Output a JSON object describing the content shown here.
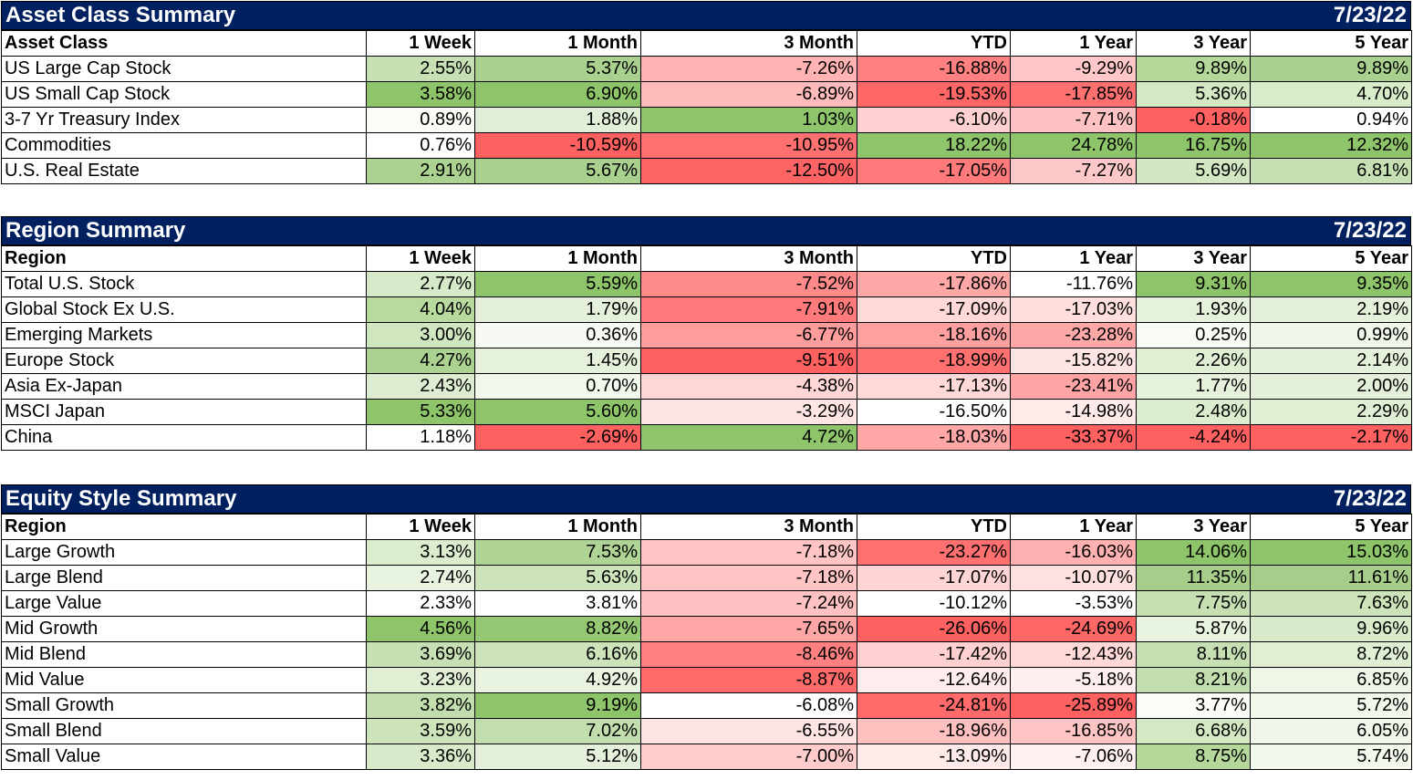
{
  "colors": {
    "header_bg": "#002060",
    "header_text": "#ffffff"
  },
  "columns": [
    "1 Week",
    "1 Month",
    "3 Month",
    "YTD",
    "1 Year",
    "3 Year",
    "5 Year"
  ],
  "sections": [
    {
      "title": "Asset Class Summary",
      "date": "7/23/22",
      "first_col": "Asset Class",
      "rows": [
        {
          "name": "US Large Cap Stock",
          "values": [
            "2.55%",
            "5.37%",
            "-7.26%",
            "-16.88%",
            "-9.29%",
            "9.89%",
            "9.89%"
          ],
          "fills": [
            "#c6e0b4",
            "#a9d08e",
            "#ffb3b3",
            "#ff8080",
            "#ffc7c7",
            "#b5d89a",
            "#a9d08e"
          ]
        },
        {
          "name": "US Small Cap Stock",
          "values": [
            "3.58%",
            "6.90%",
            "-6.89%",
            "-19.53%",
            "-17.85%",
            "5.36%",
            "4.70%"
          ],
          "fills": [
            "#8ec46a",
            "#8ec46a",
            "#ffbaba",
            "#ff6666",
            "#ff7070",
            "#d4e8c4",
            "#d9ecca"
          ]
        },
        {
          "name": "3-7 Yr Treasury Index",
          "values": [
            "0.89%",
            "1.88%",
            "1.03%",
            "-6.10%",
            "-7.71%",
            "-0.18%",
            "0.94%"
          ],
          "fills": [
            "#fafcf8",
            "#e2efd8",
            "#8ec46a",
            "#ffd0d0",
            "#ffc2c2",
            "#ff6060",
            "#ffffff"
          ]
        },
        {
          "name": "Commodities",
          "values": [
            "0.76%",
            "-10.59%",
            "-10.95%",
            "18.22%",
            "24.78%",
            "16.75%",
            "12.32%"
          ],
          "fills": [
            "#ffffff",
            "#ff6060",
            "#ff7070",
            "#8ec46a",
            "#8ec46a",
            "#8ec46a",
            "#8ec46a"
          ]
        },
        {
          "name": "U.S. Real Estate",
          "values": [
            "2.91%",
            "5.67%",
            "-12.50%",
            "-17.05%",
            "-7.27%",
            "5.69%",
            "6.81%"
          ],
          "fills": [
            "#acd292",
            "#a9d08e",
            "#ff6464",
            "#ff7a7a",
            "#ffc8c8",
            "#d2e7c2",
            "#c6e0b4"
          ]
        }
      ]
    },
    {
      "title": "Region Summary",
      "date": "7/23/22",
      "first_col": "Region",
      "rows": [
        {
          "name": "Total U.S. Stock",
          "values": [
            "2.77%",
            "5.59%",
            "-7.52%",
            "-17.86%",
            "-11.76%",
            "9.31%",
            "9.35%"
          ],
          "fills": [
            "#d6e9c8",
            "#8ec46a",
            "#ff8a8a",
            "#ffa8a8",
            "#ffffff",
            "#8ec46a",
            "#8ec46a"
          ]
        },
        {
          "name": "Global Stock Ex U.S.",
          "values": [
            "4.04%",
            "1.79%",
            "-7.91%",
            "-17.09%",
            "-17.03%",
            "1.93%",
            "2.19%"
          ],
          "fills": [
            "#b8da9e",
            "#e4f0da",
            "#ff7a7a",
            "#ffd8d8",
            "#ffdede",
            "#e6f1dc",
            "#e4f0da"
          ]
        },
        {
          "name": "Emerging Markets",
          "values": [
            "3.00%",
            "0.36%",
            "-6.77%",
            "-18.16%",
            "-23.28%",
            "0.25%",
            "0.99%"
          ],
          "fills": [
            "#d0e6bf",
            "#f6faf2",
            "#ff9c9c",
            "#ffa0a0",
            "#ffa8a8",
            "#f8fbf4",
            "#f0f7ea"
          ]
        },
        {
          "name": "Europe Stock",
          "values": [
            "4.27%",
            "1.45%",
            "-9.51%",
            "-18.99%",
            "-15.82%",
            "2.26%",
            "2.14%"
          ],
          "fills": [
            "#acd292",
            "#e6f1dc",
            "#ff6060",
            "#ff7070",
            "#ffe4e4",
            "#e0eed4",
            "#e4f0da"
          ]
        },
        {
          "name": "Asia Ex-Japan",
          "values": [
            "2.43%",
            "0.70%",
            "-4.38%",
            "-17.13%",
            "-23.41%",
            "1.77%",
            "2.00%"
          ],
          "fills": [
            "#deedd1",
            "#f2f8ec",
            "#ffd6d6",
            "#ffd8d8",
            "#ffa4a4",
            "#e6f1dc",
            "#e4f0da"
          ]
        },
        {
          "name": "MSCI Japan",
          "values": [
            "5.33%",
            "5.60%",
            "-3.29%",
            "-16.50%",
            "-14.98%",
            "2.48%",
            "2.29%"
          ],
          "fills": [
            "#8ec46a",
            "#8ec46a",
            "#ffe4e4",
            "#ffffff",
            "#ffeaea",
            "#dcecce",
            "#e0eed4"
          ]
        },
        {
          "name": "China",
          "values": [
            "1.18%",
            "-2.69%",
            "4.72%",
            "-18.03%",
            "-33.37%",
            "-4.24%",
            "-2.17%"
          ],
          "fills": [
            "#ffffff",
            "#ff6060",
            "#8ec46a",
            "#ffa6a6",
            "#ff6060",
            "#ff6060",
            "#ff6060"
          ]
        }
      ]
    },
    {
      "title": "Equity Style Summary",
      "date": "7/23/22",
      "first_col": "Region",
      "rows": [
        {
          "name": "Large Growth",
          "values": [
            "3.13%",
            "7.53%",
            "-7.18%",
            "-23.27%",
            "-16.03%",
            "14.06%",
            "15.03%"
          ],
          "fills": [
            "#dcecce",
            "#b0d496",
            "#ffc4c4",
            "#ff7070",
            "#ffb0b0",
            "#8ec46a",
            "#8ec46a"
          ]
        },
        {
          "name": "Large Blend",
          "values": [
            "2.74%",
            "5.63%",
            "-7.18%",
            "-17.07%",
            "-10.07%",
            "11.35%",
            "11.61%"
          ],
          "fills": [
            "#e8f3e0",
            "#cde4bb",
            "#ffc4c4",
            "#ffd4d4",
            "#ffe0e0",
            "#a6ce8a",
            "#a6ce8a"
          ]
        },
        {
          "name": "Large Value",
          "values": [
            "2.33%",
            "3.81%",
            "-7.24%",
            "-10.12%",
            "-3.53%",
            "7.75%",
            "7.63%"
          ],
          "fills": [
            "#ffffff",
            "#ffffff",
            "#ffc2c2",
            "#ffffff",
            "#ffffff",
            "#c6e0b4",
            "#cde4bb"
          ]
        },
        {
          "name": "Mid Growth",
          "values": [
            "4.56%",
            "8.82%",
            "-7.65%",
            "-26.06%",
            "-24.69%",
            "5.87%",
            "9.96%"
          ],
          "fills": [
            "#8ec46a",
            "#96c874",
            "#ffa6a6",
            "#ff6060",
            "#ff6666",
            "#e8f3e0",
            "#d8eaca"
          ]
        },
        {
          "name": "Mid Blend",
          "values": [
            "3.69%",
            "6.16%",
            "-8.46%",
            "-17.42%",
            "-12.43%",
            "8.11%",
            "8.72%"
          ],
          "fills": [
            "#c6e0b4",
            "#cde4bb",
            "#ff8080",
            "#ffd0d0",
            "#ffd8d8",
            "#c6e0b4",
            "#e0eed4"
          ]
        },
        {
          "name": "Mid Value",
          "values": [
            "3.23%",
            "4.92%",
            "-8.87%",
            "-12.64%",
            "-5.18%",
            "8.21%",
            "6.85%"
          ],
          "fills": [
            "#e0eed4",
            "#e8f3e0",
            "#ff6a6a",
            "#ffecec",
            "#ffeeee",
            "#c2ddae",
            "#eef6e8"
          ]
        },
        {
          "name": "Small Growth",
          "values": [
            "3.82%",
            "9.19%",
            "-6.08%",
            "-24.81%",
            "-25.89%",
            "3.77%",
            "5.72%"
          ],
          "fills": [
            "#c2ddae",
            "#8ec46a",
            "#ffffff",
            "#ff6a6a",
            "#ff6060",
            "#fafcf8",
            "#f2f8ec"
          ]
        },
        {
          "name": "Small Blend",
          "values": [
            "3.59%",
            "7.02%",
            "-6.55%",
            "-18.96%",
            "-16.85%",
            "6.68%",
            "6.05%"
          ],
          "fills": [
            "#cde4bb",
            "#c2ddae",
            "#ffe4e4",
            "#ffc0c0",
            "#ffc4c4",
            "#d4e8c4",
            "#f0f7ea"
          ]
        },
        {
          "name": "Small Value",
          "values": [
            "3.36%",
            "5.12%",
            "-7.00%",
            "-13.09%",
            "-7.06%",
            "8.75%",
            "5.74%"
          ],
          "fills": [
            "#d8eaca",
            "#e4f0da",
            "#ffcccc",
            "#ffeaea",
            "#fff0f0",
            "#b5d89a",
            "#f2f8ec"
          ]
        }
      ]
    }
  ]
}
